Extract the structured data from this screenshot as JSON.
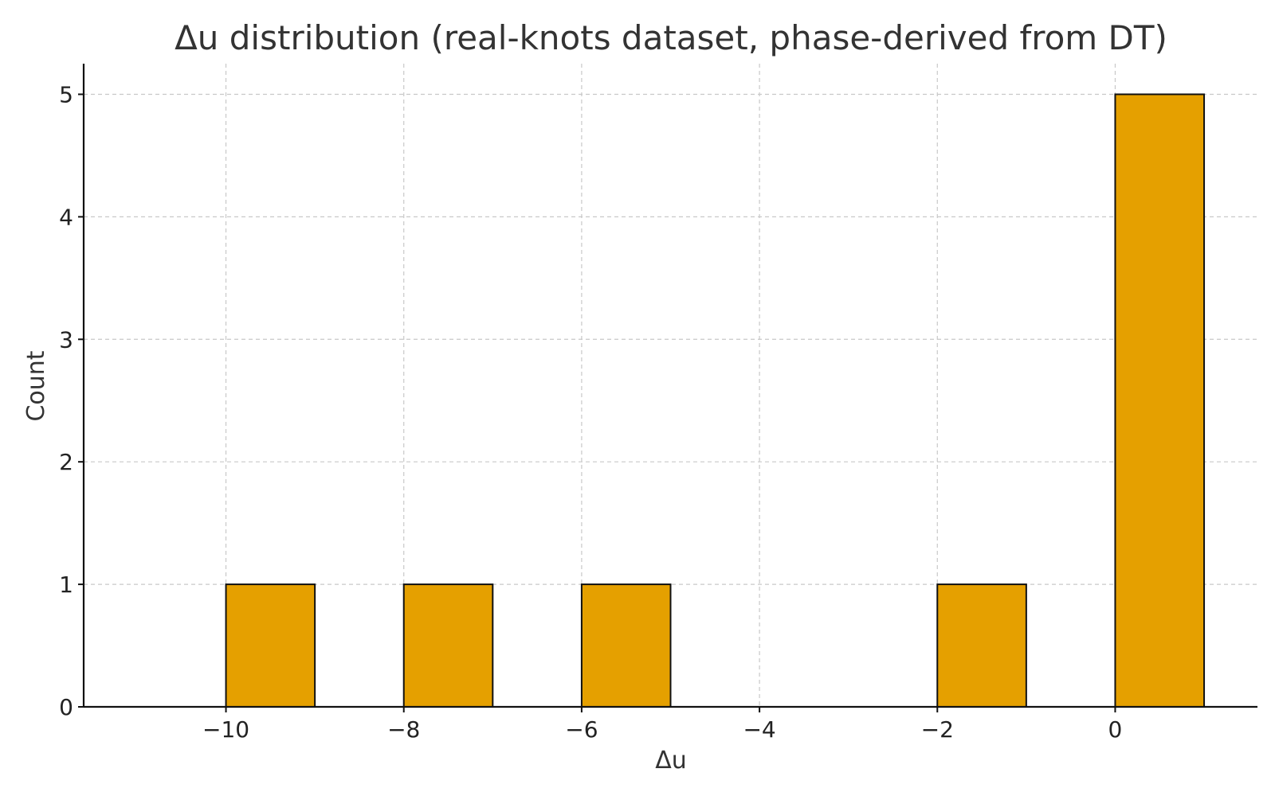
{
  "chart_data": {
    "type": "bar",
    "title": "Δu distribution (real-knots dataset, phase-derived from DT)",
    "xlabel": "Δu",
    "ylabel": "Count",
    "bins": [
      {
        "x0": -10,
        "x1": -9,
        "count": 1
      },
      {
        "x0": -8,
        "x1": -7,
        "count": 1
      },
      {
        "x0": -6,
        "x1": -5,
        "count": 1
      },
      {
        "x0": -2,
        "x1": -1,
        "count": 1
      },
      {
        "x0": 0,
        "x1": 1,
        "count": 5
      }
    ],
    "xlim": [
      -11.6,
      1.6
    ],
    "ylim": [
      0,
      5.25
    ],
    "xticks": [
      -10,
      -8,
      -6,
      -4,
      -2,
      0
    ],
    "xtick_labels": [
      "−10",
      "−8",
      "−6",
      "−4",
      "−2",
      "0"
    ],
    "yticks": [
      0,
      1,
      2,
      3,
      4,
      5
    ],
    "ytick_labels": [
      "0",
      "1",
      "2",
      "3",
      "4",
      "5"
    ],
    "grid": true,
    "bar_color": "#E5A000",
    "edge_color": "#111111"
  }
}
